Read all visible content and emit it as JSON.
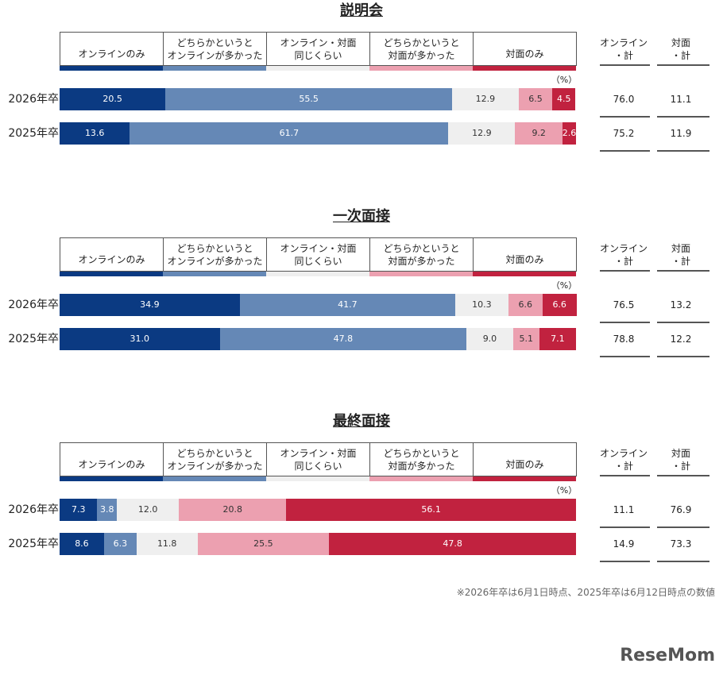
{
  "chart_data": [
    {
      "type": "bar",
      "orientation": "horizontal",
      "stacked": true,
      "title": "説明会",
      "unit": "（%）",
      "categories": [
        "2026年卒",
        "2025年卒"
      ],
      "xlim": [
        0,
        100
      ],
      "series": [
        {
          "name": "オンラインのみ",
          "color": "#0b3a82",
          "values": [
            20.5,
            13.6
          ],
          "value_labels": [
            "20.5",
            "13.6"
          ]
        },
        {
          "name": "どちらかというと\nオンラインが多かった",
          "color": "#6588b6",
          "values": [
            55.5,
            61.7
          ],
          "value_labels": [
            "55.5",
            "61.7"
          ]
        },
        {
          "name": "オンライン・対面\n同じくらい",
          "color": "#efefef",
          "values": [
            12.9,
            12.9
          ],
          "value_labels": [
            "12.9",
            "12.9"
          ]
        },
        {
          "name": "どちらかというと\n対面が多かった",
          "color": "#eca0b0",
          "values": [
            6.5,
            9.2
          ],
          "value_labels": [
            "6.5",
            "9.2"
          ]
        },
        {
          "name": "対面のみ",
          "color": "#c1223f",
          "values": [
            4.5,
            2.6
          ],
          "value_labels": [
            "4.5",
            "2.6"
          ]
        }
      ],
      "summary": {
        "headers": [
          "オンライン\n・計",
          "対面\n・計"
        ],
        "values": [
          [
            76.0,
            11.1
          ],
          [
            75.2,
            11.9
          ]
        ],
        "value_labels": [
          [
            "76.0",
            "11.1"
          ],
          [
            "75.2",
            "11.9"
          ]
        ]
      }
    },
    {
      "type": "bar",
      "orientation": "horizontal",
      "stacked": true,
      "title": "一次面接",
      "unit": "（%）",
      "categories": [
        "2026年卒",
        "2025年卒"
      ],
      "xlim": [
        0,
        100
      ],
      "series": [
        {
          "name": "オンラインのみ",
          "color": "#0b3a82",
          "values": [
            34.9,
            31.0
          ],
          "value_labels": [
            "34.9",
            "31.0"
          ]
        },
        {
          "name": "どちらかというと\nオンラインが多かった",
          "color": "#6588b6",
          "values": [
            41.7,
            47.8
          ],
          "value_labels": [
            "41.7",
            "47.8"
          ]
        },
        {
          "name": "オンライン・対面\n同じくらい",
          "color": "#efefef",
          "values": [
            10.3,
            9.0
          ],
          "value_labels": [
            "10.3",
            "9.0"
          ]
        },
        {
          "name": "どちらかというと\n対面が多かった",
          "color": "#eca0b0",
          "values": [
            6.6,
            5.1
          ],
          "value_labels": [
            "6.6",
            "5.1"
          ]
        },
        {
          "name": "対面のみ",
          "color": "#c1223f",
          "values": [
            6.6,
            7.1
          ],
          "value_labels": [
            "6.6",
            "7.1"
          ]
        }
      ],
      "summary": {
        "headers": [
          "オンライン\n・計",
          "対面\n・計"
        ],
        "values": [
          [
            76.5,
            13.2
          ],
          [
            78.8,
            12.2
          ]
        ],
        "value_labels": [
          [
            "76.5",
            "13.2"
          ],
          [
            "78.8",
            "12.2"
          ]
        ]
      }
    },
    {
      "type": "bar",
      "orientation": "horizontal",
      "stacked": true,
      "title": "最終面接",
      "unit": "（%）",
      "categories": [
        "2026年卒",
        "2025年卒"
      ],
      "xlim": [
        0,
        100
      ],
      "series": [
        {
          "name": "オンラインのみ",
          "color": "#0b3a82",
          "values": [
            7.3,
            8.6
          ],
          "value_labels": [
            "7.3",
            "8.6"
          ]
        },
        {
          "name": "どちらかというと\nオンラインが多かった",
          "color": "#6588b6",
          "values": [
            3.8,
            6.3
          ],
          "value_labels": [
            "3.8",
            "6.3"
          ]
        },
        {
          "name": "オンライン・対面\n同じくらい",
          "color": "#efefef",
          "values": [
            12.0,
            11.8
          ],
          "value_labels": [
            "12.0",
            "11.8"
          ]
        },
        {
          "name": "どちらかというと\n対面が多かった",
          "color": "#eca0b0",
          "values": [
            20.8,
            25.5
          ],
          "value_labels": [
            "20.8",
            "25.5"
          ]
        },
        {
          "name": "対面のみ",
          "color": "#c1223f",
          "values": [
            56.1,
            47.8
          ],
          "value_labels": [
            "56.1",
            "47.8"
          ]
        }
      ],
      "summary": {
        "headers": [
          "オンライン\n・計",
          "対面\n・計"
        ],
        "values": [
          [
            11.1,
            76.9
          ],
          [
            14.9,
            73.3
          ]
        ],
        "value_labels": [
          [
            "11.1",
            "76.9"
          ],
          [
            "14.9",
            "73.3"
          ]
        ]
      }
    }
  ],
  "footnote": "※2026年卒は6月1日時点、2025年卒は6月12日時点の数値",
  "watermark": "ReseMom"
}
